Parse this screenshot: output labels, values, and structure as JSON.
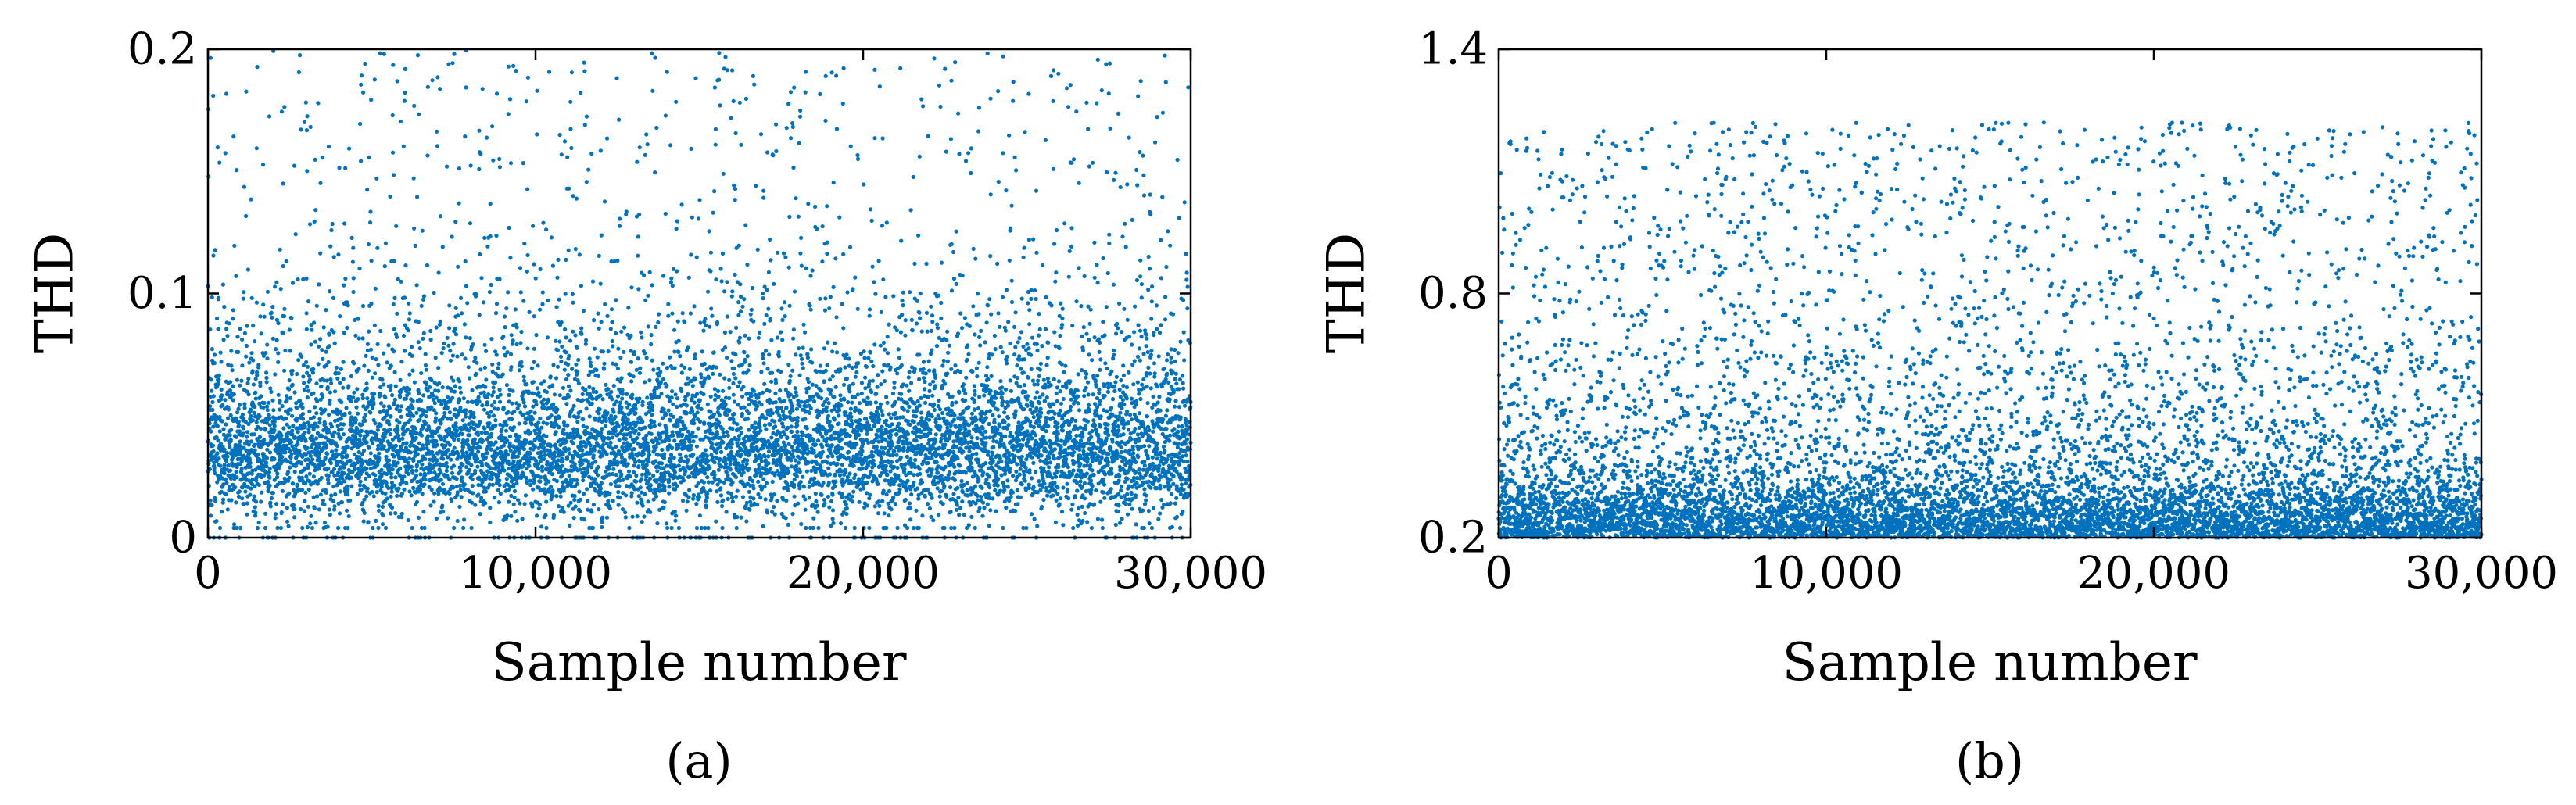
{
  "chart_data": [
    {
      "type": "scatter",
      "panel": "(a)",
      "xlabel": "Sample number",
      "ylabel": "THD",
      "xlim": [
        0,
        30000
      ],
      "ylim": [
        0,
        0.2
      ],
      "xticks": [
        "0",
        "10,000",
        "20,000",
        "30,000"
      ],
      "yticks": [
        "0",
        "0.1",
        "0.2"
      ],
      "n_points": 30000,
      "distribution_summary": {
        "dense_band_y_range": [
          0.02,
          0.06
        ],
        "peak_density_y": 0.035,
        "sparse_tail_y_range": [
          0.06,
          0.2
        ],
        "baseline_row_y": 0.0
      },
      "color": "#0072BD",
      "grid": false,
      "legend": "none"
    },
    {
      "type": "scatter",
      "panel": "(b)",
      "xlabel": "Sample number",
      "ylabel": "THD",
      "xlim": [
        0,
        30000
      ],
      "ylim": [
        0.2,
        1.4
      ],
      "xticks": [
        "0",
        "10,000",
        "20,000",
        "30,000"
      ],
      "yticks": [
        "0.2",
        "0.8",
        "1.4"
      ],
      "n_points": 30000,
      "distribution_summary": {
        "dense_band_y_range": [
          0.2,
          0.4
        ],
        "peak_density_y": 0.22,
        "max_y": 1.22,
        "upper_fringe_y_range": [
          1.1,
          1.22
        ]
      },
      "color": "#0072BD",
      "grid": false,
      "legend": "none"
    }
  ]
}
